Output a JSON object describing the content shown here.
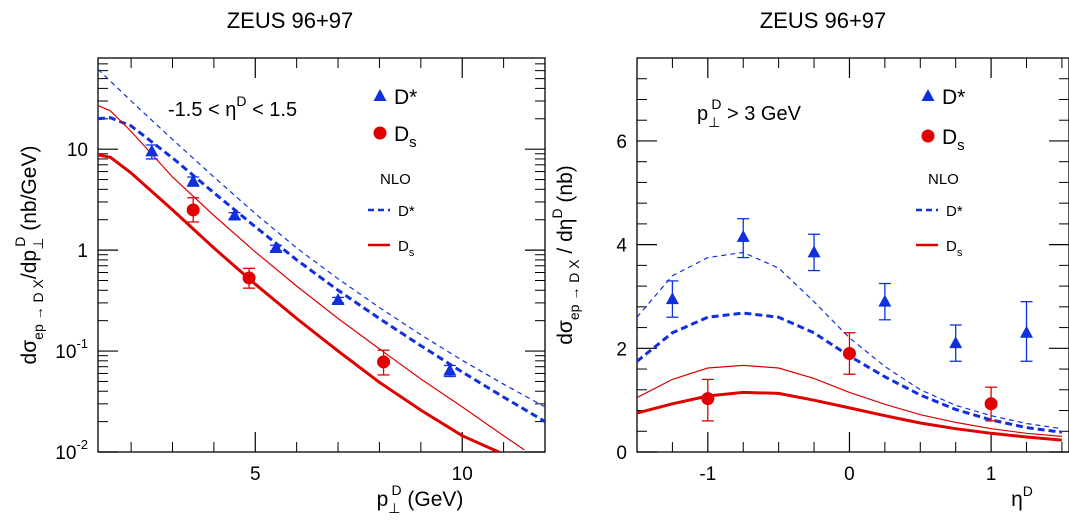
{
  "colors": {
    "dstar": "#1030e0",
    "ds": "#e00000",
    "axis": "#000000"
  },
  "chart_data": [
    {
      "type": "scatter",
      "title": "ZEUS 96+97",
      "xlabel_main": "p",
      "xlabel_sup": "D",
      "xlabel_sub": "⊥",
      "xlabel_unit": "(GeV)",
      "ylabel_prefix": "dσ",
      "ylabel_sub": "ep → D X",
      "ylabel_mid": "/dp",
      "ylabel_sup": "D",
      "ylabel_sub2": "⊥",
      "ylabel_unit": "(nb/GeV)",
      "annotation": {
        "a": "-1.5 < η",
        "sup": "D",
        "b": " < 1.5"
      },
      "x_scale": "linear",
      "y_scale": "log",
      "xlim": [
        1.2,
        12
      ],
      "ylim": [
        0.01,
        80
      ],
      "x_ticks": [
        {
          "value": 5,
          "label": "5"
        },
        {
          "value": 10,
          "label": "10"
        }
      ],
      "y_ticks": [
        {
          "value": 10,
          "base": "10",
          "exp": ""
        },
        {
          "value": 1,
          "base": "1",
          "exp": ""
        },
        {
          "value": 0.1,
          "base": "10",
          "exp": "-1"
        },
        {
          "value": 0.01,
          "base": "10",
          "exp": "-2"
        }
      ],
      "legend": {
        "data_entries": [
          {
            "marker": "triangle",
            "label": "D*",
            "series": "dstar"
          },
          {
            "marker": "circle",
            "label": "D",
            "sub": "s",
            "series": "ds"
          }
        ],
        "title": "NLO",
        "line_entries": [
          {
            "style": "dashed",
            "label": "D*",
            "series": "dstar"
          },
          {
            "style": "solid",
            "label": "D",
            "sub": "s",
            "series": "ds"
          }
        ]
      },
      "series": [
        {
          "name": "D*",
          "kind": "data",
          "marker": "triangle",
          "color_key": "dstar",
          "points": [
            {
              "x": 2.5,
              "y": 9.5,
              "lo": 8.0,
              "hi": 11.0
            },
            {
              "x": 3.5,
              "y": 4.8,
              "lo": 4.3,
              "hi": 5.3
            },
            {
              "x": 4.5,
              "y": 2.2,
              "lo": 2.05,
              "hi": 2.35
            },
            {
              "x": 5.5,
              "y": 1.05,
              "lo": 0.98,
              "hi": 1.12
            },
            {
              "x": 7.0,
              "y": 0.32,
              "lo": 0.3,
              "hi": 0.34
            },
            {
              "x": 9.7,
              "y": 0.064,
              "lo": 0.056,
              "hi": 0.072
            }
          ]
        },
        {
          "name": "D",
          "sub": "s",
          "kind": "data",
          "marker": "circle",
          "color_key": "ds",
          "points": [
            {
              "x": 3.5,
              "y": 2.5,
              "lo": 1.9,
              "hi": 3.3
            },
            {
              "x": 4.85,
              "y": 0.53,
              "lo": 0.42,
              "hi": 0.66
            },
            {
              "x": 8.1,
              "y": 0.078,
              "lo": 0.058,
              "hi": 0.102
            }
          ]
        },
        {
          "kind": "curve",
          "color_key": "dstar",
          "dash": "5,4",
          "width": 1.2,
          "x": [
            1.2,
            2,
            3,
            4,
            5,
            6,
            7,
            8,
            9,
            10,
            11,
            12
          ],
          "y": [
            62,
            30,
            12.5,
            5.3,
            2.3,
            1.05,
            0.52,
            0.27,
            0.145,
            0.081,
            0.047,
            0.028
          ]
        },
        {
          "kind": "curve",
          "color_key": "dstar",
          "dash": "7,4",
          "width": 3,
          "x": [
            1.2,
            1.5,
            2,
            3,
            4,
            5,
            6,
            7,
            8,
            9,
            10,
            11,
            12
          ],
          "y": [
            20,
            20.5,
            17,
            8.2,
            3.7,
            1.7,
            0.8,
            0.4,
            0.21,
            0.113,
            0.062,
            0.035,
            0.02
          ]
        },
        {
          "kind": "curve",
          "color_key": "ds",
          "dash": "",
          "width": 1.2,
          "x": [
            1.2,
            1.5,
            2,
            3,
            4,
            5,
            6,
            7,
            8,
            9,
            10,
            11,
            11.5
          ],
          "y": [
            27,
            24,
            15,
            5.3,
            2.2,
            0.96,
            0.44,
            0.21,
            0.105,
            0.053,
            0.028,
            0.0145,
            0.0105
          ]
        },
        {
          "kind": "curve",
          "color_key": "ds",
          "dash": "",
          "width": 3,
          "x": [
            1.2,
            1.5,
            2,
            3,
            4,
            5,
            6,
            7,
            8,
            9,
            10,
            11,
            11.3
          ],
          "y": [
            8.8,
            8.3,
            5.8,
            2.5,
            1.05,
            0.46,
            0.21,
            0.1,
            0.049,
            0.026,
            0.0145,
            0.0095,
            0.008
          ]
        }
      ]
    },
    {
      "type": "scatter",
      "title": "ZEUS 96+97",
      "xlabel_main": "η",
      "xlabel_sup": "D",
      "ylabel_prefix": "dσ",
      "ylabel_sub": "ep → D X",
      "ylabel_mid": " / dη",
      "ylabel_sup": "D",
      "ylabel_unit": "(nb)",
      "annotation": {
        "a": "p",
        "sub": "⊥",
        "sup": "D",
        "b": " > 3 GeV"
      },
      "x_scale": "linear",
      "y_scale": "linear",
      "xlim": [
        -1.5,
        1.55
      ],
      "ylim": [
        0,
        7.6
      ],
      "x_ticks": [
        {
          "value": -1,
          "label": "-1"
        },
        {
          "value": 0,
          "label": "0"
        },
        {
          "value": 1,
          "label": "1"
        }
      ],
      "y_ticks": [
        {
          "value": 0,
          "base": "0",
          "exp": ""
        },
        {
          "value": 2,
          "base": "2",
          "exp": ""
        },
        {
          "value": 4,
          "base": "4",
          "exp": ""
        },
        {
          "value": 6,
          "base": "6",
          "exp": ""
        }
      ],
      "legend": {
        "data_entries": [
          {
            "marker": "triangle",
            "label": "D*",
            "series": "dstar"
          },
          {
            "marker": "circle",
            "label": "D",
            "sub": "s",
            "series": "ds"
          }
        ],
        "title": "NLO",
        "line_entries": [
          {
            "style": "dashed",
            "label": "D*",
            "series": "dstar"
          },
          {
            "style": "solid",
            "label": "D",
            "sub": "s",
            "series": "ds"
          }
        ]
      },
      "series": [
        {
          "name": "D*",
          "kind": "data",
          "marker": "triangle",
          "color_key": "dstar",
          "points": [
            {
              "x": -1.25,
              "y": 2.95,
              "lo": 2.6,
              "hi": 3.3
            },
            {
              "x": -0.75,
              "y": 4.15,
              "lo": 3.75,
              "hi": 4.5
            },
            {
              "x": -0.25,
              "y": 3.85,
              "lo": 3.5,
              "hi": 4.2
            },
            {
              "x": 0.25,
              "y": 2.9,
              "lo": 2.55,
              "hi": 3.25
            },
            {
              "x": 0.75,
              "y": 2.1,
              "lo": 1.75,
              "hi": 2.45
            },
            {
              "x": 1.25,
              "y": 2.3,
              "lo": 1.75,
              "hi": 2.9
            }
          ]
        },
        {
          "name": "D",
          "sub": "s",
          "kind": "data",
          "marker": "circle",
          "color_key": "ds",
          "points": [
            {
              "x": -1.0,
              "y": 1.03,
              "lo": 0.6,
              "hi": 1.4
            },
            {
              "x": 0.0,
              "y": 1.9,
              "lo": 1.5,
              "hi": 2.3
            },
            {
              "x": 1.0,
              "y": 0.93,
              "lo": 0.6,
              "hi": 1.25
            }
          ]
        },
        {
          "kind": "curve",
          "color_key": "dstar",
          "dash": "5,4",
          "width": 1.2,
          "x": [
            -1.5,
            -1.25,
            -1,
            -0.75,
            -0.5,
            -0.25,
            0,
            0.25,
            0.5,
            0.75,
            1,
            1.25,
            1.5
          ],
          "y": [
            2.6,
            3.4,
            3.75,
            3.85,
            3.55,
            2.9,
            2.2,
            1.65,
            1.2,
            0.9,
            0.7,
            0.55,
            0.45
          ]
        },
        {
          "kind": "curve",
          "color_key": "dstar",
          "dash": "7,4",
          "width": 3,
          "x": [
            -1.5,
            -1.25,
            -1,
            -0.75,
            -0.5,
            -0.25,
            0,
            0.25,
            0.5,
            0.75,
            1,
            1.25,
            1.5
          ],
          "y": [
            1.75,
            2.3,
            2.6,
            2.68,
            2.6,
            2.3,
            1.85,
            1.45,
            1.1,
            0.82,
            0.62,
            0.47,
            0.38
          ]
        },
        {
          "kind": "curve",
          "color_key": "ds",
          "dash": "",
          "width": 1.2,
          "x": [
            -1.5,
            -1.25,
            -1,
            -0.75,
            -0.5,
            -0.25,
            0,
            0.25,
            0.5,
            0.75,
            1,
            1.25,
            1.5
          ],
          "y": [
            1.05,
            1.4,
            1.62,
            1.67,
            1.62,
            1.42,
            1.15,
            0.92,
            0.72,
            0.57,
            0.45,
            0.36,
            0.3
          ]
        },
        {
          "kind": "curve",
          "color_key": "ds",
          "dash": "",
          "width": 3,
          "x": [
            -1.5,
            -1.25,
            -1,
            -0.75,
            -0.5,
            -0.25,
            0,
            0.25,
            0.5,
            0.75,
            1,
            1.25,
            1.5
          ],
          "y": [
            0.75,
            0.93,
            1.08,
            1.15,
            1.13,
            1.0,
            0.85,
            0.7,
            0.56,
            0.45,
            0.36,
            0.29,
            0.23
          ]
        }
      ]
    }
  ]
}
